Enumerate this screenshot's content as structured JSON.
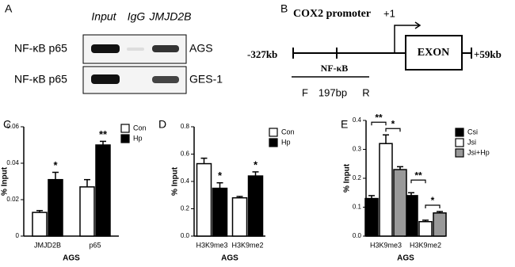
{
  "panel_a": {
    "label": "A",
    "columns": [
      "Input",
      "IgG",
      "JMJD2B"
    ],
    "rows": [
      "NF-κB p65",
      "NF-κB p65"
    ],
    "cells": [
      "AGS",
      "GES-1"
    ]
  },
  "panel_b": {
    "label": "B",
    "title": "COX2 promoter",
    "start_site": "+1",
    "left": "-327kb",
    "right": "+59kb",
    "exon": "EXON",
    "site": "NF-κB",
    "forward": "F",
    "amplicon": "197bp",
    "reverse": "R"
  },
  "chart_data": [
    {
      "type": "bar",
      "label": "C",
      "ylabel": "% Input",
      "xlabel": "AGS",
      "categories": [
        "JMJD2B",
        "p65"
      ],
      "series": [
        {
          "name": "Con",
          "color": "#ffffff",
          "values": [
            0.013,
            0.027
          ],
          "errors": [
            0.001,
            0.004
          ],
          "significance": [
            null,
            null
          ]
        },
        {
          "name": "Hp",
          "color": "#000000",
          "values": [
            0.031,
            0.05
          ],
          "errors": [
            0.004,
            0.002
          ],
          "significance": [
            "*",
            "**"
          ]
        }
      ],
      "ylim": [
        0,
        0.06
      ],
      "yticks": [
        0,
        0.02,
        0.04,
        0.06
      ]
    },
    {
      "type": "bar",
      "label": "D",
      "ylabel": "% Input",
      "xlabel": "AGS",
      "categories": [
        "H3K9me3",
        "H3K9me2"
      ],
      "series": [
        {
          "name": "Con",
          "color": "#ffffff",
          "values": [
            0.53,
            0.28
          ],
          "errors": [
            0.04,
            0.01
          ],
          "significance": [
            null,
            null
          ]
        },
        {
          "name": "Hp",
          "color": "#000000",
          "values": [
            0.35,
            0.44
          ],
          "errors": [
            0.04,
            0.03
          ],
          "significance": [
            "*",
            "*"
          ]
        }
      ],
      "ylim": [
        0,
        0.8
      ],
      "yticks": [
        {
          "value": 0,
          "label": "0.0"
        },
        0.2,
        0.4,
        0.6,
        0.8
      ]
    },
    {
      "type": "bar",
      "label": "E",
      "ylabel": "% Input",
      "xlabel": "AGS",
      "categories": [
        "H3K9me3",
        "H3K9me2"
      ],
      "series": [
        {
          "name": "Csi",
          "color": "#000000",
          "values": [
            0.13,
            0.14
          ],
          "errors": [
            0.01,
            0.01
          ]
        },
        {
          "name": "Jsi",
          "color": "#ffffff",
          "values": [
            0.32,
            0.05
          ],
          "errors": [
            0.03,
            0.005
          ]
        },
        {
          "name": "Jsi+Hp",
          "color": "#999999",
          "values": [
            0.23,
            0.08
          ],
          "errors": [
            0.01,
            0.005
          ]
        }
      ],
      "comparisons": [
        [
          "**",
          "**"
        ],
        [
          "*",
          "*"
        ]
      ],
      "ylim": [
        0,
        0.4
      ],
      "yticks": [
        {
          "value": 0,
          "label": "0.0"
        },
        0.1,
        0.2,
        0.3,
        0.4
      ]
    }
  ]
}
